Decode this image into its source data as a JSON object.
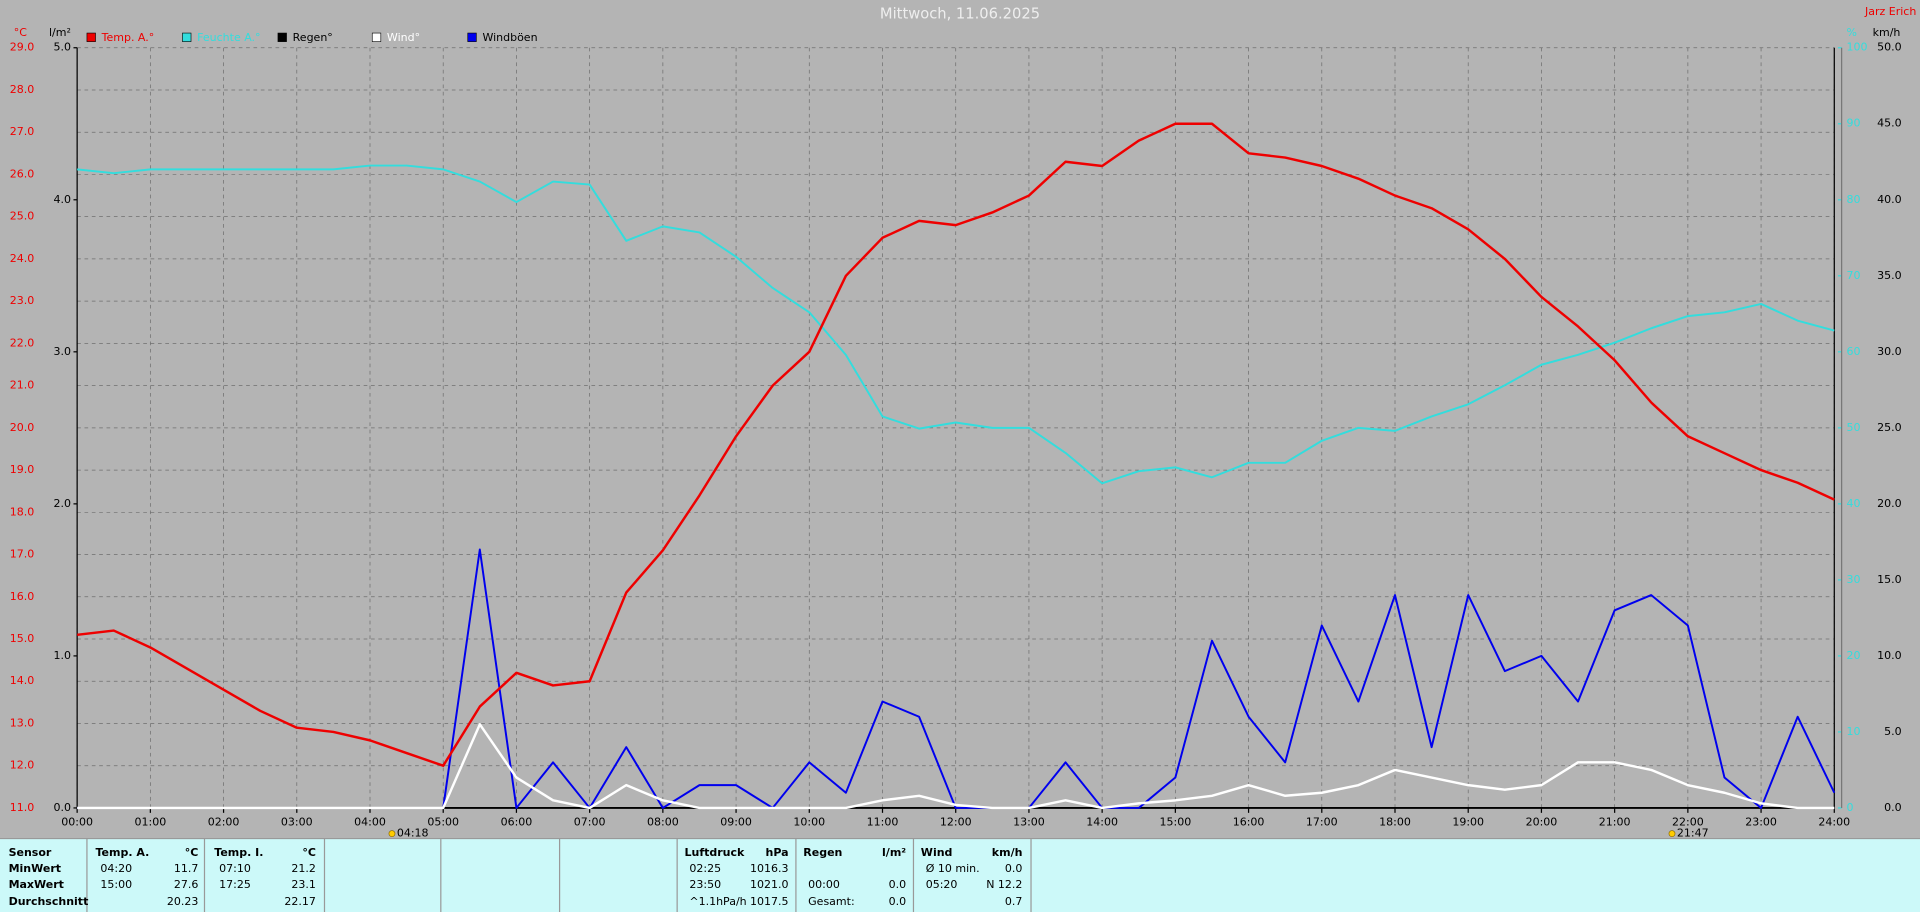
{
  "chart_data": {
    "type": "line",
    "title": "Mittwoch, 11.06.2025",
    "author": "Jarz Erich",
    "y_label": "°C",
    "y3_label": "l/m²",
    "y4_label": "%",
    "y2_label": "km/h",
    "x": [
      0,
      0.5,
      1,
      1.5,
      2,
      2.5,
      3,
      3.5,
      4,
      4.5,
      5,
      5.5,
      6,
      6.5,
      7,
      7.5,
      8,
      8.5,
      9,
      9.5,
      10,
      10.5,
      11,
      11.5,
      12,
      12.5,
      13,
      13.5,
      14,
      14.5,
      15,
      15.5,
      16,
      16.5,
      17,
      17.5,
      18,
      18.5,
      19,
      19.5,
      20,
      20.5,
      21,
      21.5,
      22,
      22.5,
      23,
      23.5,
      24
    ],
    "xlim": [
      0,
      24
    ],
    "xticks": [
      {
        "value": 0,
        "label": "00:00"
      },
      {
        "value": 1,
        "label": "01:00"
      },
      {
        "value": 2,
        "label": "02:00"
      },
      {
        "value": 3,
        "label": "03:00"
      },
      {
        "value": 4,
        "label": "04:00"
      },
      {
        "value": 5,
        "label": "05:00"
      },
      {
        "value": 6,
        "label": "06:00"
      },
      {
        "value": 7,
        "label": "07:00"
      },
      {
        "value": 8,
        "label": "08:00"
      },
      {
        "value": 9,
        "label": "09:00"
      },
      {
        "value": 10,
        "label": "10:00"
      },
      {
        "value": 11,
        "label": "11:00"
      },
      {
        "value": 12,
        "label": "12:00"
      },
      {
        "value": 13,
        "label": "13:00"
      },
      {
        "value": 14,
        "label": "14:00"
      },
      {
        "value": 15,
        "label": "15:00"
      },
      {
        "value": 16,
        "label": "16:00"
      },
      {
        "value": 17,
        "label": "17:00"
      },
      {
        "value": 18,
        "label": "18:00"
      },
      {
        "value": 19,
        "label": "19:00"
      },
      {
        "value": 20,
        "label": "20:00"
      },
      {
        "value": 21,
        "label": "21:00"
      },
      {
        "value": 22,
        "label": "22:00"
      },
      {
        "value": 23,
        "label": "23:00"
      },
      {
        "value": 24,
        "label": "24:00"
      }
    ],
    "ylim": [
      11,
      29
    ],
    "yticks": [
      {
        "value": 11,
        "label": "11.0"
      },
      {
        "value": 12,
        "label": "12.0"
      },
      {
        "value": 13,
        "label": "13.0"
      },
      {
        "value": 14,
        "label": "14.0"
      },
      {
        "value": 15,
        "label": "15.0"
      },
      {
        "value": 16,
        "label": "16.0"
      },
      {
        "value": 17,
        "label": "17.0"
      },
      {
        "value": 18,
        "label": "18.0"
      },
      {
        "value": 19,
        "label": "19.0"
      },
      {
        "value": 20,
        "label": "20.0"
      },
      {
        "value": 21,
        "label": "21.0"
      },
      {
        "value": 22,
        "label": "22.0"
      },
      {
        "value": 23,
        "label": "23.0"
      },
      {
        "value": 24,
        "label": "24.0"
      },
      {
        "value": 25,
        "label": "25.0"
      },
      {
        "value": 26,
        "label": "26.0"
      },
      {
        "value": 27,
        "label": "27.0"
      },
      {
        "value": 28,
        "label": "28.0"
      },
      {
        "value": 29,
        "label": "29.0"
      }
    ],
    "y3lim": [
      0,
      5
    ],
    "y3ticks": [
      {
        "value": 0,
        "label": "0.0"
      },
      {
        "value": 1,
        "label": "1.0"
      },
      {
        "value": 2,
        "label": "2.0"
      },
      {
        "value": 3,
        "label": "3.0"
      },
      {
        "value": 4,
        "label": "4.0"
      },
      {
        "value": 5,
        "label": "5.0"
      }
    ],
    "y4lim": [
      0,
      100
    ],
    "y4ticks": [
      0,
      10,
      20,
      30,
      40,
      50,
      60,
      70,
      80,
      90,
      100
    ],
    "y2lim": [
      0,
      50
    ],
    "y2ticks": [
      {
        "value": 0,
        "label": "0.0"
      },
      {
        "value": 5,
        "label": "5.0"
      },
      {
        "value": 10,
        "label": "10.0"
      },
      {
        "value": 15,
        "label": "15.0"
      },
      {
        "value": 20,
        "label": "20.0"
      },
      {
        "value": 25,
        "label": "25.0"
      },
      {
        "value": 30,
        "label": "30.0"
      },
      {
        "value": 35,
        "label": "35.0"
      },
      {
        "value": 40,
        "label": "40.0"
      },
      {
        "value": 45,
        "label": "45.0"
      },
      {
        "value": 50,
        "label": "50.0"
      }
    ],
    "grid": true,
    "series": [
      {
        "name": "Temp. A.°",
        "color": "#ee0000",
        "axis": "y",
        "values": [
          15.1,
          15.2,
          14.8,
          14.3,
          13.8,
          13.3,
          12.9,
          12.8,
          12.6,
          12.3,
          12.0,
          13.4,
          14.2,
          13.9,
          14.0,
          16.1,
          17.1,
          18.4,
          19.8,
          21.0,
          21.8,
          23.6,
          24.5,
          24.9,
          24.8,
          25.1,
          25.5,
          26.3,
          26.2,
          26.8,
          27.2,
          27.2,
          26.5,
          26.4,
          26.2,
          25.9,
          25.5,
          25.2,
          24.7,
          24.0,
          23.1,
          22.4,
          21.6,
          20.6,
          19.8,
          19.4,
          19.0,
          18.7,
          18.3
        ]
      },
      {
        "name": "Feuchte A.°",
        "color": "#33dddd",
        "axis": "y4",
        "values": [
          84,
          83.5,
          84,
          84,
          84,
          84,
          84,
          84,
          84.5,
          84.5,
          84,
          82.4,
          79.7,
          82.4,
          82,
          74.6,
          76.5,
          75.7,
          72.5,
          68.4,
          65.2,
          59.6,
          51.5,
          49.9,
          50.7,
          50,
          50,
          46.7,
          42.7,
          44.3,
          44.8,
          43.5,
          45.4,
          45.4,
          48.3,
          50,
          49.6,
          51.5,
          53.1,
          55.6,
          58.3,
          59.6,
          61.2,
          63.1,
          64.7,
          65.2,
          66.3,
          64.1,
          62.8
        ]
      },
      {
        "name": "Regen°",
        "color": "#000000",
        "axis": "y3",
        "values": [
          0,
          0,
          0,
          0,
          0,
          0,
          0,
          0,
          0,
          0,
          0,
          0,
          0,
          0,
          0,
          0,
          0,
          0,
          0,
          0,
          0,
          0,
          0,
          0,
          0,
          0,
          0,
          0,
          0,
          0,
          0,
          0,
          0,
          0,
          0,
          0,
          0,
          0,
          0,
          0,
          0,
          0,
          0,
          0,
          0,
          0,
          0,
          0,
          0
        ]
      },
      {
        "name": "Wind°",
        "color": "#ffffff",
        "axis": "y2",
        "values": [
          0,
          0,
          0,
          0,
          0,
          0,
          0,
          0,
          0,
          0,
          0,
          5.5,
          2,
          0.5,
          0,
          1.5,
          0.5,
          0,
          0,
          0,
          0,
          0,
          0.5,
          0.8,
          0.2,
          0,
          0,
          0.5,
          0,
          0.3,
          0.5,
          0.8,
          1.5,
          0.8,
          1,
          1.5,
          2.5,
          2,
          1.5,
          1.2,
          1.5,
          3,
          3,
          2.5,
          1.5,
          1,
          0.3,
          0,
          0
        ]
      },
      {
        "name": "Windböen",
        "color": "#0000ee",
        "axis": "y2",
        "values": [
          0,
          0,
          0,
          0,
          0,
          0,
          0,
          0,
          0,
          0,
          0,
          17,
          0,
          3,
          0,
          4,
          0,
          1.5,
          1.5,
          0,
          3,
          1,
          7,
          6,
          0,
          0,
          0,
          3,
          0,
          0,
          2,
          11,
          6,
          3,
          12,
          7,
          14,
          4,
          14,
          9,
          10,
          7,
          13,
          14,
          12,
          2,
          0,
          6,
          1
        ]
      }
    ],
    "sun_events": [
      {
        "value": 4.3,
        "label": "04:18"
      },
      {
        "value": 21.7833,
        "label": "21:47"
      }
    ]
  },
  "stats_table": {
    "row_header": "Sensor",
    "row_labels": [
      "MinWert",
      "MaxWert",
      "Durchschnitt"
    ],
    "groups": [
      {
        "title": "Temp. A.",
        "unit": "°C",
        "rows": [
          [
            "04:20",
            "11.7"
          ],
          [
            "15:00",
            "27.6"
          ],
          [
            null,
            "20.23"
          ]
        ]
      },
      {
        "title": "Temp. I.",
        "unit": "°C",
        "rows": [
          [
            "07:10",
            "21.2"
          ],
          [
            "17:25",
            "23.1"
          ],
          [
            null,
            "22.17"
          ]
        ]
      },
      {
        "title": "Luftdruck",
        "unit": "hPa",
        "rows": [
          [
            "02:25",
            "1016.3"
          ],
          [
            "23:50",
            "1021.0"
          ],
          [
            "^1.1hPa/h",
            "1017.5"
          ]
        ]
      },
      {
        "title": "Regen",
        "unit": "l/m²",
        "rows": [
          [
            null,
            null
          ],
          [
            "00:00",
            "0.0"
          ],
          [
            "Gesamt:",
            "0.0"
          ]
        ]
      },
      {
        "title": "Wind",
        "unit": "km/h",
        "rows": [
          [
            "Ø 10 min.",
            "0.0"
          ],
          [
            "05:20",
            "N 12.2"
          ],
          [
            null,
            "0.7"
          ]
        ]
      }
    ]
  }
}
